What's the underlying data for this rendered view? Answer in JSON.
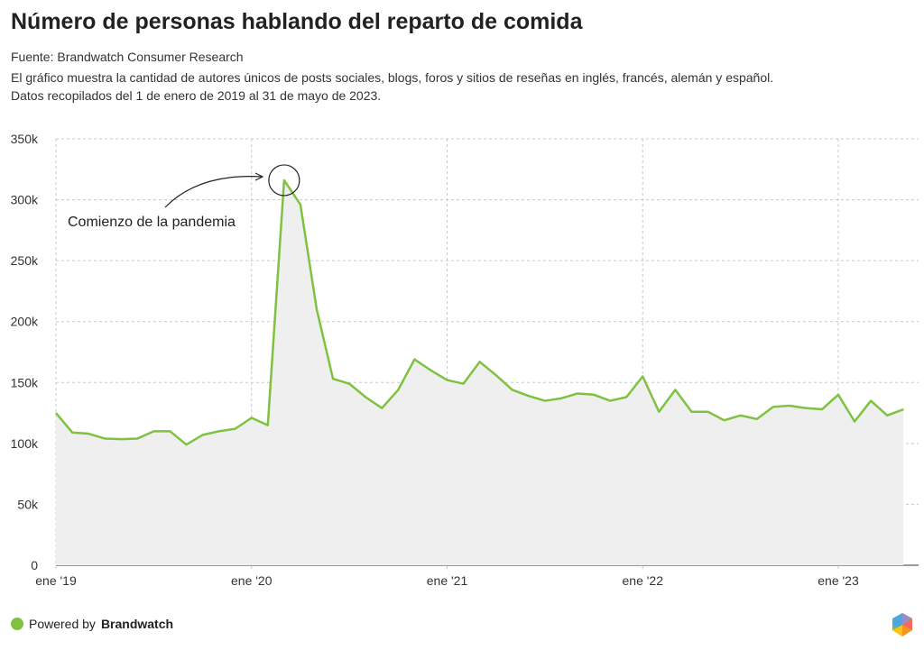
{
  "header": {
    "title": "Número de personas hablando del reparto de comida",
    "source": "Fuente: Brandwatch Consumer Research",
    "description_1": "El gráfico muestra la cantidad de autores únicos de posts sociales, blogs, foros y sitios de reseñas en inglés, francés, alemán y español.",
    "description_2": "Datos recopilados del 1 de enero de 2019 al 31 de mayo de 2023."
  },
  "footer": {
    "powered_by": "Powered by",
    "brand": "Brandwatch"
  },
  "colors": {
    "line": "#7fc241",
    "area": "#efefef",
    "grid": "#c8c8c8"
  },
  "chart_data": {
    "type": "area",
    "title": "Número de personas hablando del reparto de comida",
    "xlabel": "",
    "ylabel": "",
    "ylim": [
      0,
      350000
    ],
    "yticks": [
      0,
      50000,
      100000,
      150000,
      200000,
      250000,
      300000,
      350000
    ],
    "ytick_labels": [
      "0",
      "50k",
      "100k",
      "150k",
      "200k",
      "250k",
      "300k",
      "350k"
    ],
    "xtick_labels": [
      "ene '19",
      "ene '20",
      "ene '21",
      "ene '22",
      "ene '23"
    ],
    "xtick_index": [
      0,
      12,
      24,
      36,
      48
    ],
    "start": "2019-01",
    "interval": "month",
    "grid": true,
    "values": [
      125000,
      109000,
      108000,
      104000,
      103500,
      104000,
      110000,
      110000,
      99000,
      107000,
      110000,
      112000,
      121000,
      115000,
      316000,
      296000,
      210000,
      153000,
      149000,
      138000,
      129000,
      144000,
      169000,
      160000,
      152000,
      149000,
      167000,
      156000,
      144000,
      139000,
      135000,
      137000,
      141000,
      140000,
      135000,
      138000,
      155000,
      126000,
      144000,
      126000,
      126000,
      119000,
      123000,
      120000,
      130000,
      131000,
      129000,
      128000,
      140000,
      118000,
      135000,
      123000,
      128000
    ],
    "annotation": {
      "text": "Comienzo de la pandemia",
      "index": 14
    }
  }
}
